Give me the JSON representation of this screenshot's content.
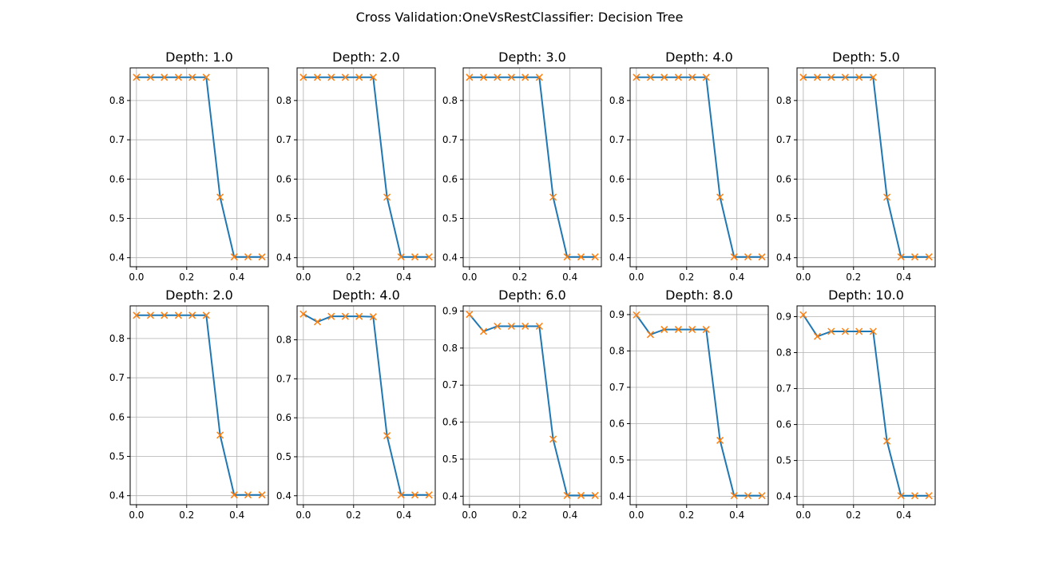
{
  "suptitle": "Cross Validation:OneVsRestClassifier: Decision Tree",
  "colors": {
    "line": "#1f77b4",
    "marker": "#ff7f0e",
    "grid": "#b0b0b0",
    "axes": "#000000"
  },
  "chart_data": [
    {
      "type": "line",
      "title": "Depth: 1.0",
      "xlim": [
        -0.025,
        0.525
      ],
      "ylim": [
        0.377,
        0.883
      ],
      "xticks": [
        0.0,
        0.2,
        0.4
      ],
      "xtick_labels": [
        "0.0",
        "0.2",
        "0.4"
      ],
      "yticks": [
        0.4,
        0.5,
        0.6,
        0.7,
        0.8
      ],
      "ytick_labels": [
        "0.4",
        "0.5",
        "0.6",
        "0.7",
        "0.8"
      ],
      "grid": true,
      "marker": "x",
      "x": [
        0.0,
        0.056,
        0.111,
        0.167,
        0.222,
        0.278,
        0.333,
        0.389,
        0.444,
        0.5
      ],
      "y": [
        0.859,
        0.859,
        0.859,
        0.859,
        0.859,
        0.859,
        0.554,
        0.402,
        0.402,
        0.402
      ]
    },
    {
      "type": "line",
      "title": "Depth: 2.0",
      "xlim": [
        -0.025,
        0.525
      ],
      "ylim": [
        0.377,
        0.883
      ],
      "xticks": [
        0.0,
        0.2,
        0.4
      ],
      "xtick_labels": [
        "0.0",
        "0.2",
        "0.4"
      ],
      "yticks": [
        0.4,
        0.5,
        0.6,
        0.7,
        0.8
      ],
      "ytick_labels": [
        "0.4",
        "0.5",
        "0.6",
        "0.7",
        "0.8"
      ],
      "grid": true,
      "marker": "x",
      "x": [
        0.0,
        0.056,
        0.111,
        0.167,
        0.222,
        0.278,
        0.333,
        0.389,
        0.444,
        0.5
      ],
      "y": [
        0.859,
        0.859,
        0.859,
        0.859,
        0.859,
        0.859,
        0.554,
        0.402,
        0.402,
        0.402
      ]
    },
    {
      "type": "line",
      "title": "Depth: 3.0",
      "xlim": [
        -0.025,
        0.525
      ],
      "ylim": [
        0.377,
        0.883
      ],
      "xticks": [
        0.0,
        0.2,
        0.4
      ],
      "xtick_labels": [
        "0.0",
        "0.2",
        "0.4"
      ],
      "yticks": [
        0.4,
        0.5,
        0.6,
        0.7,
        0.8
      ],
      "ytick_labels": [
        "0.4",
        "0.5",
        "0.6",
        "0.7",
        "0.8"
      ],
      "grid": true,
      "marker": "x",
      "x": [
        0.0,
        0.056,
        0.111,
        0.167,
        0.222,
        0.278,
        0.333,
        0.389,
        0.444,
        0.5
      ],
      "y": [
        0.859,
        0.859,
        0.859,
        0.859,
        0.859,
        0.859,
        0.554,
        0.402,
        0.402,
        0.402
      ]
    },
    {
      "type": "line",
      "title": "Depth: 4.0",
      "xlim": [
        -0.025,
        0.525
      ],
      "ylim": [
        0.377,
        0.883
      ],
      "xticks": [
        0.0,
        0.2,
        0.4
      ],
      "xtick_labels": [
        "0.0",
        "0.2",
        "0.4"
      ],
      "yticks": [
        0.4,
        0.5,
        0.6,
        0.7,
        0.8
      ],
      "ytick_labels": [
        "0.4",
        "0.5",
        "0.6",
        "0.7",
        "0.8"
      ],
      "grid": true,
      "marker": "x",
      "x": [
        0.0,
        0.056,
        0.111,
        0.167,
        0.222,
        0.278,
        0.333,
        0.389,
        0.444,
        0.5
      ],
      "y": [
        0.859,
        0.859,
        0.859,
        0.859,
        0.859,
        0.859,
        0.554,
        0.402,
        0.402,
        0.402
      ]
    },
    {
      "type": "line",
      "title": "Depth: 5.0",
      "xlim": [
        -0.025,
        0.525
      ],
      "ylim": [
        0.377,
        0.883
      ],
      "xticks": [
        0.0,
        0.2,
        0.4
      ],
      "xtick_labels": [
        "0.0",
        "0.2",
        "0.4"
      ],
      "yticks": [
        0.4,
        0.5,
        0.6,
        0.7,
        0.8
      ],
      "ytick_labels": [
        "0.4",
        "0.5",
        "0.6",
        "0.7",
        "0.8"
      ],
      "grid": true,
      "marker": "x",
      "x": [
        0.0,
        0.056,
        0.111,
        0.167,
        0.222,
        0.278,
        0.333,
        0.389,
        0.444,
        0.5
      ],
      "y": [
        0.859,
        0.859,
        0.859,
        0.859,
        0.859,
        0.859,
        0.554,
        0.402,
        0.402,
        0.402
      ]
    },
    {
      "type": "line",
      "title": "Depth: 2.0",
      "xlim": [
        -0.025,
        0.525
      ],
      "ylim": [
        0.377,
        0.883
      ],
      "xticks": [
        0.0,
        0.2,
        0.4
      ],
      "xtick_labels": [
        "0.0",
        "0.2",
        "0.4"
      ],
      "yticks": [
        0.4,
        0.5,
        0.6,
        0.7,
        0.8
      ],
      "ytick_labels": [
        "0.4",
        "0.5",
        "0.6",
        "0.7",
        "0.8"
      ],
      "grid": true,
      "marker": "x",
      "x": [
        0.0,
        0.056,
        0.111,
        0.167,
        0.222,
        0.278,
        0.333,
        0.389,
        0.444,
        0.5
      ],
      "y": [
        0.859,
        0.859,
        0.859,
        0.859,
        0.859,
        0.859,
        0.554,
        0.402,
        0.402,
        0.402
      ]
    },
    {
      "type": "line",
      "title": "Depth: 4.0",
      "xlim": [
        -0.025,
        0.525
      ],
      "ylim": [
        0.377,
        0.887
      ],
      "xticks": [
        0.0,
        0.2,
        0.4
      ],
      "xtick_labels": [
        "0.0",
        "0.2",
        "0.4"
      ],
      "yticks": [
        0.4,
        0.5,
        0.6,
        0.7,
        0.8
      ],
      "ytick_labels": [
        "0.4",
        "0.5",
        "0.6",
        "0.7",
        "0.8"
      ],
      "grid": true,
      "marker": "x",
      "x": [
        0.0,
        0.056,
        0.111,
        0.167,
        0.222,
        0.278,
        0.333,
        0.389,
        0.444,
        0.5
      ],
      "y": [
        0.866,
        0.846,
        0.86,
        0.86,
        0.86,
        0.859,
        0.554,
        0.402,
        0.402,
        0.402
      ]
    },
    {
      "type": "line",
      "title": "Depth: 6.0",
      "xlim": [
        -0.025,
        0.525
      ],
      "ylim": [
        0.377,
        0.914
      ],
      "xticks": [
        0.0,
        0.2,
        0.4
      ],
      "xtick_labels": [
        "0.0",
        "0.2",
        "0.4"
      ],
      "yticks": [
        0.4,
        0.5,
        0.6,
        0.7,
        0.8,
        0.9
      ],
      "ytick_labels": [
        "0.4",
        "0.5",
        "0.6",
        "0.7",
        "0.8",
        "0.9"
      ],
      "grid": true,
      "marker": "x",
      "x": [
        0.0,
        0.056,
        0.111,
        0.167,
        0.222,
        0.278,
        0.333,
        0.389,
        0.444,
        0.5
      ],
      "y": [
        0.891,
        0.845,
        0.859,
        0.859,
        0.859,
        0.859,
        0.554,
        0.402,
        0.402,
        0.402
      ]
    },
    {
      "type": "line",
      "title": "Depth: 8.0",
      "xlim": [
        -0.025,
        0.525
      ],
      "ylim": [
        0.377,
        0.924
      ],
      "xticks": [
        0.0,
        0.2,
        0.4
      ],
      "xtick_labels": [
        "0.0",
        "0.2",
        "0.4"
      ],
      "yticks": [
        0.4,
        0.5,
        0.6,
        0.7,
        0.8,
        0.9
      ],
      "ytick_labels": [
        "0.4",
        "0.5",
        "0.6",
        "0.7",
        "0.8",
        "0.9"
      ],
      "grid": true,
      "marker": "x",
      "x": [
        0.0,
        0.056,
        0.111,
        0.167,
        0.222,
        0.278,
        0.333,
        0.389,
        0.444,
        0.5
      ],
      "y": [
        0.899,
        0.845,
        0.859,
        0.859,
        0.859,
        0.859,
        0.554,
        0.402,
        0.402,
        0.402
      ]
    },
    {
      "type": "line",
      "title": "Depth: 10.0",
      "xlim": [
        -0.025,
        0.525
      ],
      "ylim": [
        0.377,
        0.93
      ],
      "xticks": [
        0.0,
        0.2,
        0.4
      ],
      "xtick_labels": [
        "0.0",
        "0.2",
        "0.4"
      ],
      "yticks": [
        0.4,
        0.5,
        0.6,
        0.7,
        0.8,
        0.9
      ],
      "ytick_labels": [
        "0.4",
        "0.5",
        "0.6",
        "0.7",
        "0.8",
        "0.9"
      ],
      "grid": true,
      "marker": "x",
      "x": [
        0.0,
        0.056,
        0.111,
        0.167,
        0.222,
        0.278,
        0.333,
        0.389,
        0.444,
        0.5
      ],
      "y": [
        0.905,
        0.845,
        0.859,
        0.859,
        0.859,
        0.859,
        0.554,
        0.402,
        0.402,
        0.402
      ]
    }
  ]
}
